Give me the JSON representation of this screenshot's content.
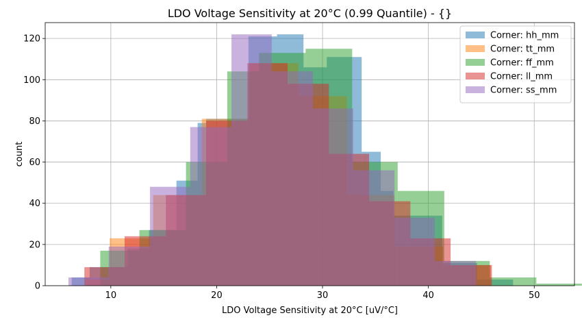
{
  "chart_data": {
    "type": "histogram",
    "title": "LDO Voltage Sensitivity at 20°C (0.99 Quantile) - {}",
    "xlabel": "LDO Voltage Sensitivity at 20°C [uV/°C]",
    "ylabel": "count",
    "xlim": [
      3.8,
      53.8
    ],
    "ylim": [
      0,
      127.7
    ],
    "xticks": [
      10,
      20,
      30,
      40,
      50
    ],
    "yticks": [
      0,
      20,
      40,
      60,
      80,
      100,
      120
    ],
    "grid": true,
    "legend_position": "upper right",
    "series": [
      {
        "name": "Corner: hh_mm",
        "color": "#1f77b4",
        "bins": [
          {
            "x0": 6.3,
            "x1": 8.0,
            "count": 4
          },
          {
            "x0": 8.0,
            "x1": 11.6,
            "count": 9
          },
          {
            "x0": 11.6,
            "x1": 13.6,
            "count": 18
          },
          {
            "x0": 13.6,
            "x1": 16.2,
            "count": 27
          },
          {
            "x0": 16.2,
            "x1": 18.2,
            "count": 51
          },
          {
            "x0": 18.2,
            "x1": 19.0,
            "count": 79
          },
          {
            "x0": 19.0,
            "x1": 23.0,
            "count": 81
          },
          {
            "x0": 23.0,
            "x1": 25.7,
            "count": 121
          },
          {
            "x0": 25.7,
            "x1": 28.2,
            "count": 122
          },
          {
            "x0": 28.2,
            "x1": 30.4,
            "count": 106
          },
          {
            "x0": 30.4,
            "x1": 33.7,
            "count": 111
          },
          {
            "x0": 33.7,
            "x1": 35.5,
            "count": 65
          },
          {
            "x0": 35.5,
            "x1": 36.7,
            "count": 46
          },
          {
            "x0": 36.7,
            "x1": 41.3,
            "count": 34
          },
          {
            "x0": 41.3,
            "x1": 44.6,
            "count": 11
          },
          {
            "x0": 44.6,
            "x1": 48.0,
            "count": 3
          }
        ]
      },
      {
        "name": "Corner: tt_mm",
        "color": "#ff7f0e",
        "bins": [
          {
            "x0": 7.5,
            "x1": 9.9,
            "count": 3
          },
          {
            "x0": 9.9,
            "x1": 14.0,
            "count": 23
          },
          {
            "x0": 14.0,
            "x1": 18.6,
            "count": 44
          },
          {
            "x0": 18.6,
            "x1": 23.1,
            "count": 81
          },
          {
            "x0": 23.1,
            "x1": 27.7,
            "count": 108
          },
          {
            "x0": 27.7,
            "x1": 32.3,
            "count": 92
          },
          {
            "x0": 32.3,
            "x1": 36.8,
            "count": 44
          },
          {
            "x0": 36.8,
            "x1": 41.4,
            "count": 19
          },
          {
            "x0": 41.4,
            "x1": 45.9,
            "count": 10
          }
        ]
      },
      {
        "name": "Corner: ff_mm",
        "color": "#2ca02c",
        "bins": [
          {
            "x0": 9.0,
            "x1": 12.7,
            "count": 17
          },
          {
            "x0": 12.7,
            "x1": 17.1,
            "count": 27
          },
          {
            "x0": 17.1,
            "x1": 21.0,
            "count": 60
          },
          {
            "x0": 21.0,
            "x1": 24.0,
            "count": 104
          },
          {
            "x0": 24.0,
            "x1": 28.4,
            "count": 113
          },
          {
            "x0": 28.4,
            "x1": 32.8,
            "count": 115
          },
          {
            "x0": 32.8,
            "x1": 37.1,
            "count": 60
          },
          {
            "x0": 37.1,
            "x1": 41.5,
            "count": 46
          },
          {
            "x0": 41.5,
            "x1": 45.8,
            "count": 12
          },
          {
            "x0": 45.8,
            "x1": 50.2,
            "count": 4
          },
          {
            "x0": 50.2,
            "x1": 54.5,
            "count": 1
          }
        ]
      },
      {
        "name": "Corner: ll_mm",
        "color": "#d62728",
        "bins": [
          {
            "x0": 7.5,
            "x1": 11.3,
            "count": 9
          },
          {
            "x0": 11.3,
            "x1": 15.2,
            "count": 24
          },
          {
            "x0": 15.2,
            "x1": 19.0,
            "count": 44
          },
          {
            "x0": 19.0,
            "x1": 22.9,
            "count": 80
          },
          {
            "x0": 22.9,
            "x1": 26.7,
            "count": 108
          },
          {
            "x0": 26.7,
            "x1": 30.6,
            "count": 98
          },
          {
            "x0": 30.6,
            "x1": 34.4,
            "count": 64
          },
          {
            "x0": 34.4,
            "x1": 38.3,
            "count": 41
          },
          {
            "x0": 38.3,
            "x1": 42.1,
            "count": 23
          },
          {
            "x0": 42.1,
            "x1": 46.0,
            "count": 10
          }
        ]
      },
      {
        "name": "Corner: ss_mm",
        "color": "#9467bd",
        "bins": [
          {
            "x0": 6.0,
            "x1": 9.8,
            "count": 4
          },
          {
            "x0": 9.8,
            "x1": 13.7,
            "count": 19
          },
          {
            "x0": 13.7,
            "x1": 17.5,
            "count": 48
          },
          {
            "x0": 17.5,
            "x1": 21.4,
            "count": 77
          },
          {
            "x0": 21.4,
            "x1": 25.2,
            "count": 122
          },
          {
            "x0": 25.2,
            "x1": 29.1,
            "count": 104
          },
          {
            "x0": 29.1,
            "x1": 32.9,
            "count": 86
          },
          {
            "x0": 32.9,
            "x1": 36.8,
            "count": 56
          },
          {
            "x0": 36.8,
            "x1": 40.6,
            "count": 33
          },
          {
            "x0": 40.6,
            "x1": 44.5,
            "count": 12
          }
        ]
      }
    ]
  }
}
